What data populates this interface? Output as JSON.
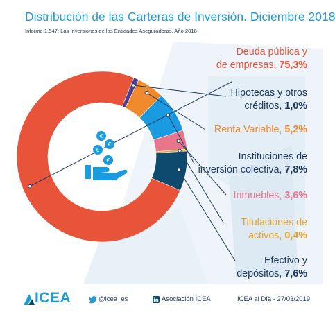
{
  "header": {
    "title": "Distribución de las Carteras de Inversión. Diciembre 2018",
    "subtitle": "Informe 1.547: Las Inversiones de las Entidades Aseguradoras. Año 2018"
  },
  "chart_data": {
    "type": "pie",
    "donut": true,
    "slices": [
      {
        "label_lines": [
          "Deuda pública y",
          "de empresas,"
        ],
        "value_text": "75,3%",
        "value": 75.3,
        "color": "#e8543a"
      },
      {
        "label_lines": [
          "Hipotecas y otros",
          "créditos,"
        ],
        "value_text": "1,0%",
        "value": 1.0,
        "color": "#4b3f8f"
      },
      {
        "label_lines": [
          "Renta Variable,"
        ],
        "value_text": "5,2%",
        "value": 5.2,
        "color": "#f08a2c"
      },
      {
        "label_lines": [
          "Instituciones de",
          "inversión colectiva,"
        ],
        "value_text": "7,8%",
        "value": 7.8,
        "color": "#1a9ae0"
      },
      {
        "label_lines": [
          "Inmuebles,"
        ],
        "value_text": "3,6%",
        "value": 3.6,
        "color": "#e8758a"
      },
      {
        "label_lines": [
          "Titulaciones de",
          "activos,"
        ],
        "value_text": "0,4%",
        "value": 0.4,
        "color": "#e9a42b"
      },
      {
        "label_lines": [
          "Efectivo y",
          "depósitos,"
        ],
        "value_text": "7,6%",
        "value": 7.6,
        "color": "#0d4a6e"
      }
    ],
    "label_colors": [
      "#e8543a",
      "#1f3a5f",
      "#f08a2c",
      "#1f3a5f",
      "#e8758a",
      "#e9a42b",
      "#1f3a5f"
    ]
  },
  "footer": {
    "logo_text": "ICEA",
    "twitter": "@icea_es",
    "linkedin": "Asociación ICEA",
    "credit": "ICEA al Día - 27/03/2019"
  },
  "colors": {
    "brand": "#1e9ad6",
    "navy": "#1f3a5f",
    "watermark": "#e6f0f7"
  }
}
